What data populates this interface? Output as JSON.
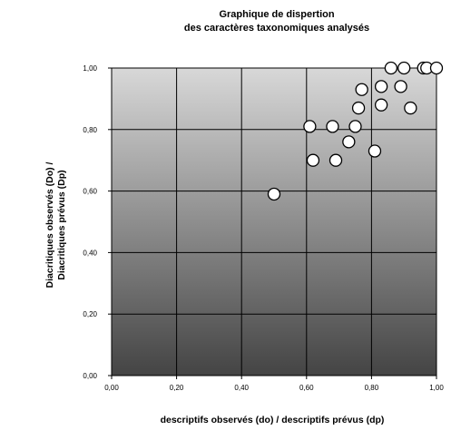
{
  "chart_data": {
    "type": "scatter",
    "title_lines": [
      "Graphique de dispertion",
      "des caractères taxonomiques analysés"
    ],
    "xlabel": "descriptifs observés (do) / descriptifs prévus (dp)",
    "ylabel_lines": [
      "Diacritiques observés (Do) /",
      "Diacritiques prévus (Dp)"
    ],
    "xlim": [
      0,
      1
    ],
    "ylim": [
      0,
      1
    ],
    "x_ticks": [
      "0,00",
      "0,20",
      "0,40",
      "0,60",
      "0,80",
      "1,00"
    ],
    "y_ticks": [
      "0,00",
      "0,20",
      "0,40",
      "0,60",
      "0,80",
      "1,00"
    ],
    "grid": true,
    "legend": "none",
    "colors": {
      "marker_fill": "#ffffff",
      "marker_stroke": "#000000",
      "plot_bg_light": "#d8d8d8",
      "plot_bg_dark": "#444444",
      "grid": "#000000"
    },
    "points": [
      {
        "x": 0.5,
        "y": 0.59
      },
      {
        "x": 0.61,
        "y": 0.81
      },
      {
        "x": 0.62,
        "y": 0.7
      },
      {
        "x": 0.68,
        "y": 0.81
      },
      {
        "x": 0.69,
        "y": 0.7
      },
      {
        "x": 0.73,
        "y": 0.76
      },
      {
        "x": 0.75,
        "y": 0.81
      },
      {
        "x": 0.76,
        "y": 0.87
      },
      {
        "x": 0.77,
        "y": 0.93
      },
      {
        "x": 0.81,
        "y": 0.73
      },
      {
        "x": 0.83,
        "y": 0.88
      },
      {
        "x": 0.83,
        "y": 0.94
      },
      {
        "x": 0.86,
        "y": 1.0
      },
      {
        "x": 0.89,
        "y": 0.94
      },
      {
        "x": 0.9,
        "y": 1.0
      },
      {
        "x": 0.92,
        "y": 0.87
      },
      {
        "x": 0.96,
        "y": 1.0
      },
      {
        "x": 0.97,
        "y": 1.0
      },
      {
        "x": 1.0,
        "y": 1.0
      }
    ]
  }
}
